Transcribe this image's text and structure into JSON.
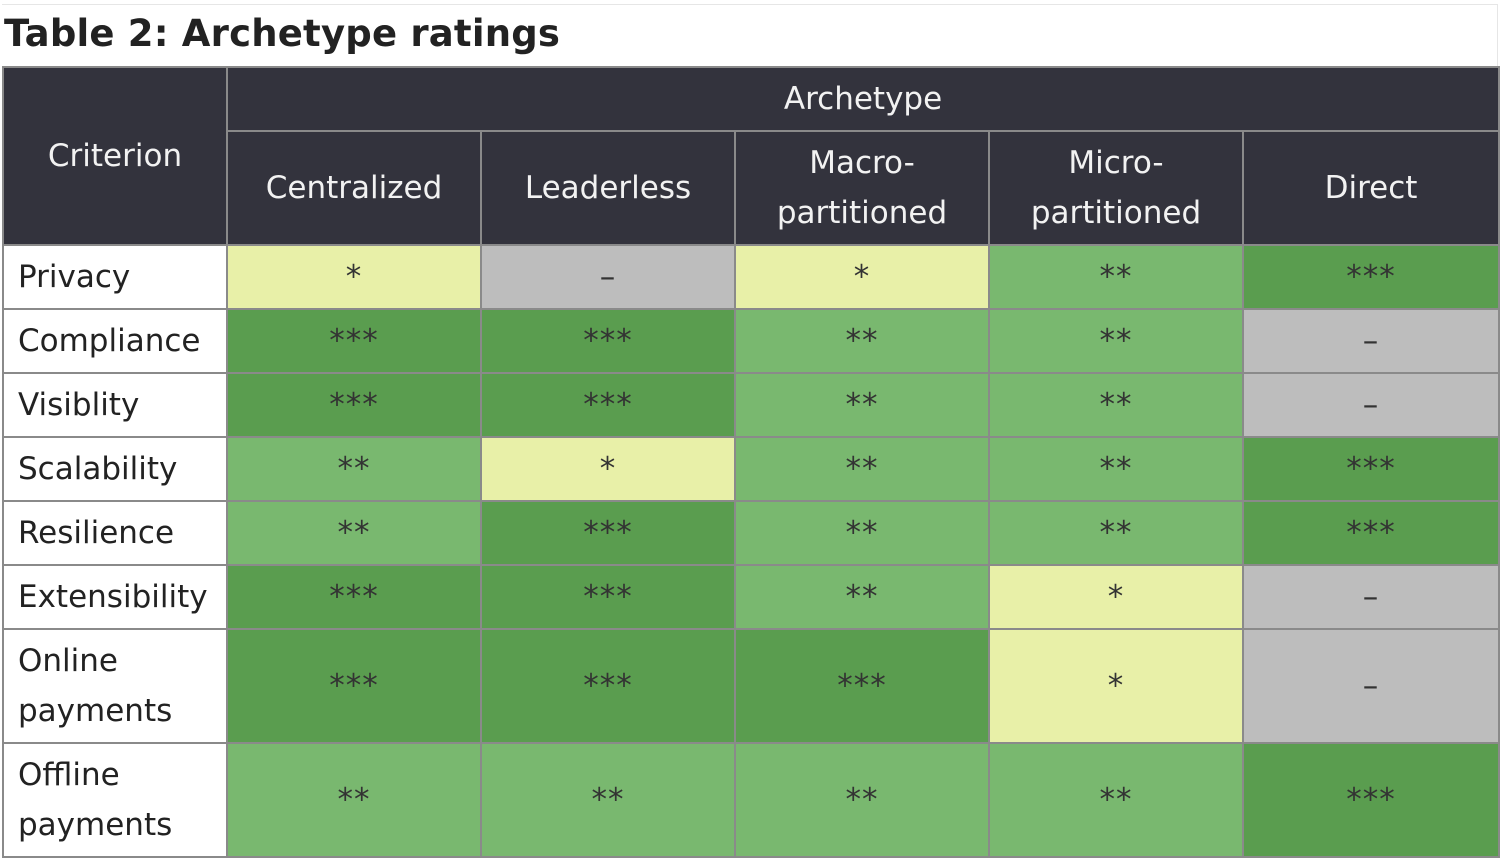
{
  "title": "Table 2: Archetype ratings",
  "header": {
    "criterion": "Criterion",
    "group": "Archetype",
    "columns": [
      {
        "line1": "Centralized",
        "line2": ""
      },
      {
        "line1": "Leaderless",
        "line2": ""
      },
      {
        "line1": "Macro-",
        "line2": "partitioned"
      },
      {
        "line1": "Micro-",
        "line2": "partitioned"
      },
      {
        "line1": "Direct",
        "line2": ""
      }
    ]
  },
  "legend_colors": {
    "none": "#bdbdbd",
    "one": "#e8f0a8",
    "two": "#79b86f",
    "three": "#5a9d4f",
    "header": "#33333d"
  },
  "rows": [
    {
      "line1": "Privacy",
      "line2": "",
      "values": [
        "*",
        "–",
        "*",
        "**",
        "***"
      ]
    },
    {
      "line1": "Compliance",
      "line2": "",
      "values": [
        "***",
        "***",
        "**",
        "**",
        "–"
      ]
    },
    {
      "line1": "Visiblity",
      "line2": "",
      "values": [
        "***",
        "***",
        "**",
        "**",
        "–"
      ]
    },
    {
      "line1": "Scalability",
      "line2": "",
      "values": [
        "**",
        "*",
        "**",
        "**",
        "***"
      ]
    },
    {
      "line1": "Resilience",
      "line2": "",
      "values": [
        "**",
        "***",
        "**",
        "**",
        "***"
      ]
    },
    {
      "line1": "Extensibility",
      "line2": "",
      "values": [
        "***",
        "***",
        "**",
        "*",
        "–"
      ]
    },
    {
      "line1": "Online",
      "line2": "payments",
      "values": [
        "***",
        "***",
        "***",
        "*",
        "–"
      ]
    },
    {
      "line1": "Offline",
      "line2": "payments",
      "values": [
        "**",
        "**",
        "**",
        "**",
        "***"
      ]
    }
  ]
}
